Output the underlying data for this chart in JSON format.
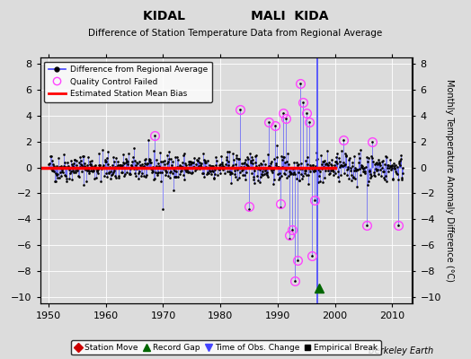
{
  "title1": "KIDAL               MALI  KIDA",
  "title2": "Difference of Station Temperature Data from Regional Average",
  "ylabel": "Monthly Temperature Anomaly Difference (°C)",
  "xlabel_bottom": "Berkeley Earth",
  "xlim": [
    1948.5,
    2013.5
  ],
  "ylim": [
    -10.5,
    8.5
  ],
  "yticks": [
    -10,
    -8,
    -6,
    -4,
    -2,
    0,
    2,
    4,
    6,
    8
  ],
  "xticks": [
    1950,
    1960,
    1970,
    1980,
    1990,
    2000,
    2010
  ],
  "bg_color": "#dcdcdc",
  "plot_bg_color": "#dcdcdc",
  "line_color": "#4444ff",
  "bias_line_color": "#ff0000",
  "qc_fail_color": "#ff44ff",
  "station_move_color": "#cc0000",
  "record_gap_color": "#006600",
  "time_obs_color": "#4444ff",
  "empirical_break_color": "#000000",
  "seed": 42,
  "start_year": 1950,
  "end_year": 2012,
  "base_std": 0.55,
  "spike_times": [
    1968.5,
    1970.0,
    1983.5,
    1985.0,
    1988.5,
    1989.5,
    1990.5,
    1991.0,
    1991.5,
    1992.0,
    1992.5,
    1993.0,
    1993.5,
    1994.0,
    1994.5,
    1995.0,
    1995.5,
    1996.0,
    1996.5,
    2001.5,
    2005.5,
    2006.5,
    2011.0
  ],
  "spike_values": [
    2.5,
    -3.2,
    4.5,
    -3.2,
    3.5,
    3.2,
    -3.1,
    4.2,
    3.8,
    -5.5,
    -4.8,
    -8.8,
    -7.2,
    6.5,
    5.0,
    4.2,
    3.5,
    -6.8,
    -2.5,
    2.1,
    -4.5,
    2.0,
    -4.5
  ],
  "qc_fail_coords": [
    [
      1968.5,
      2.5
    ],
    [
      1983.5,
      4.5
    ],
    [
      1985.0,
      -3.0
    ],
    [
      1988.5,
      3.5
    ],
    [
      1989.5,
      3.2
    ],
    [
      1990.5,
      -2.8
    ],
    [
      1991.0,
      4.2
    ],
    [
      1991.5,
      3.8
    ],
    [
      1992.0,
      -5.2
    ],
    [
      1992.5,
      -4.8
    ],
    [
      1993.0,
      -8.8
    ],
    [
      1993.5,
      -7.2
    ],
    [
      1994.0,
      6.5
    ],
    [
      1994.5,
      5.0
    ],
    [
      1995.0,
      4.2
    ],
    [
      1995.5,
      3.5
    ],
    [
      1996.0,
      -6.8
    ],
    [
      1996.5,
      -2.5
    ],
    [
      2001.5,
      2.1
    ],
    [
      2005.5,
      -4.5
    ],
    [
      2006.5,
      2.0
    ],
    [
      2011.0,
      -4.5
    ]
  ],
  "record_gap_coords": [
    [
      1997.2,
      -9.3
    ]
  ],
  "time_obs_vline": 1997.0,
  "bias_y": -0.05,
  "bias_start": 1948.5,
  "bias_end": 2000.0
}
